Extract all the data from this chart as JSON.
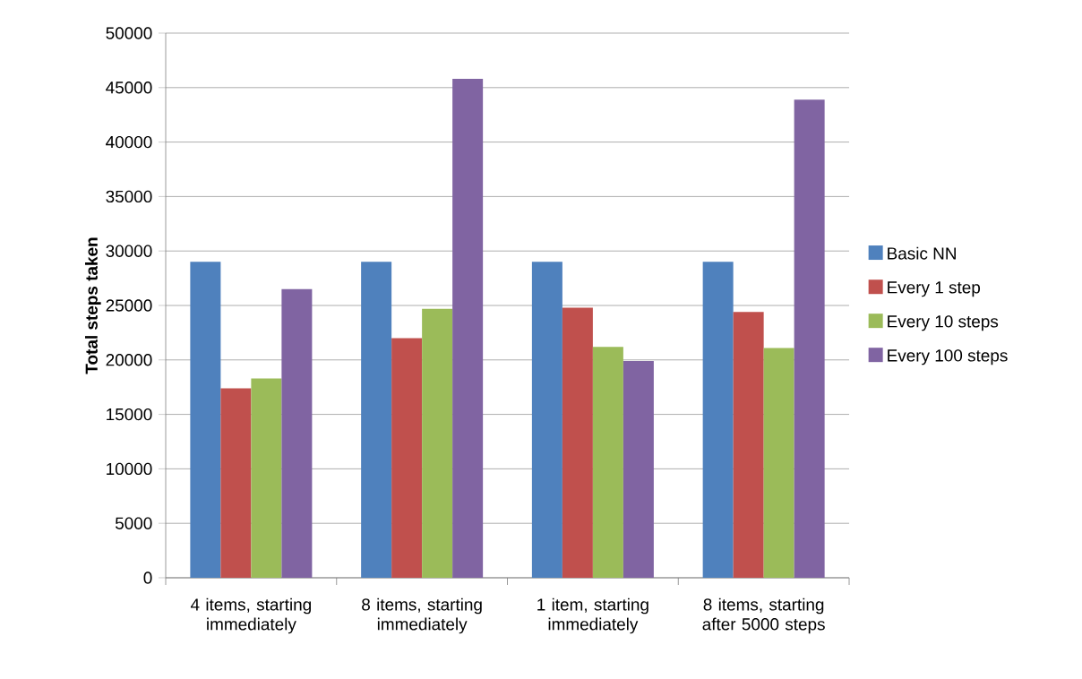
{
  "chart_data": {
    "type": "bar",
    "ylabel": "Total steps taken",
    "categories": [
      "4 items, starting immediately",
      "8 items, starting immediately",
      "1 item, starting immediately",
      "8 items, starting after 5000 steps"
    ],
    "series": [
      {
        "name": "Basic NN",
        "color": "#4f81bd",
        "values": [
          29000,
          29000,
          29000,
          29000
        ]
      },
      {
        "name": "Every 1 step",
        "color": "#c0504d",
        "values": [
          17400,
          22000,
          24800,
          24400
        ]
      },
      {
        "name": "Every 10 steps",
        "color": "#9bbb59",
        "values": [
          18300,
          24700,
          21200,
          21100
        ]
      },
      {
        "name": "Every 100 steps",
        "color": "#8064a2",
        "values": [
          26500,
          45800,
          19900,
          43900
        ]
      }
    ],
    "ylim": [
      0,
      50000
    ],
    "yticks": [
      0,
      5000,
      10000,
      15000,
      20000,
      25000,
      30000,
      35000,
      40000,
      45000,
      50000
    ],
    "grid": "y",
    "legend": "right"
  }
}
